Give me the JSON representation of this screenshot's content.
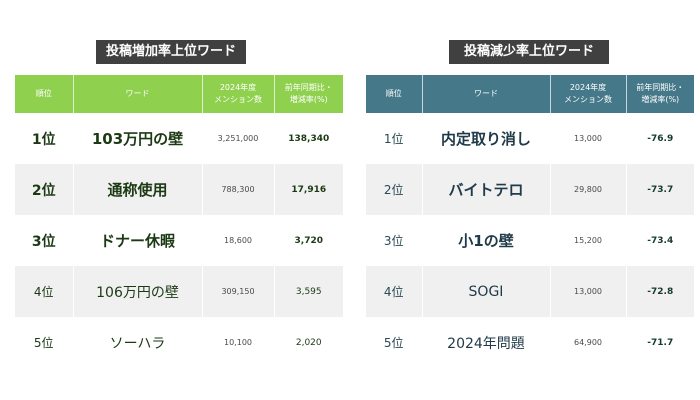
{
  "left": {
    "title": "投稿増加率上位ワード",
    "headers": {
      "rank": "順位",
      "word": "ワード",
      "count": "2024年度\nメンション数",
      "rate": "前年同期比・\n増減率(%)"
    },
    "rows": [
      {
        "rank": "1位",
        "word": "103万円の壁",
        "count": "3,251,000",
        "rate": "138,340"
      },
      {
        "rank": "2位",
        "word": "通称使用",
        "count": "788,300",
        "rate": "17,916"
      },
      {
        "rank": "3位",
        "word": "ドナー休暇",
        "count": "18,600",
        "rate": "3,720"
      },
      {
        "rank": "4位",
        "word": "106万円の壁",
        "count": "309,150",
        "rate": "3,595"
      },
      {
        "rank": "5位",
        "word": "ソーハラ",
        "count": "10,100",
        "rate": "2,020"
      }
    ]
  },
  "right": {
    "title": "投稿減少率上位ワード",
    "headers": {
      "rank": "順位",
      "word": "ワード",
      "count": "2024年度\nメンション数",
      "rate": "前年同期比・\n増減率(%)"
    },
    "rows": [
      {
        "rank": "1位",
        "word": "内定取り消し",
        "count": "13,000",
        "rate": "-76.9"
      },
      {
        "rank": "2位",
        "word": "バイトテロ",
        "count": "29,800",
        "rate": "-73.7"
      },
      {
        "rank": "3位",
        "word": "小1の壁",
        "count": "15,200",
        "rate": "-73.4"
      },
      {
        "rank": "4位",
        "word": "SOGI",
        "count": "13,000",
        "rate": "-72.8"
      },
      {
        "rank": "5位",
        "word": "2024年問題",
        "count": "64,900",
        "rate": "-71.7"
      }
    ]
  }
}
